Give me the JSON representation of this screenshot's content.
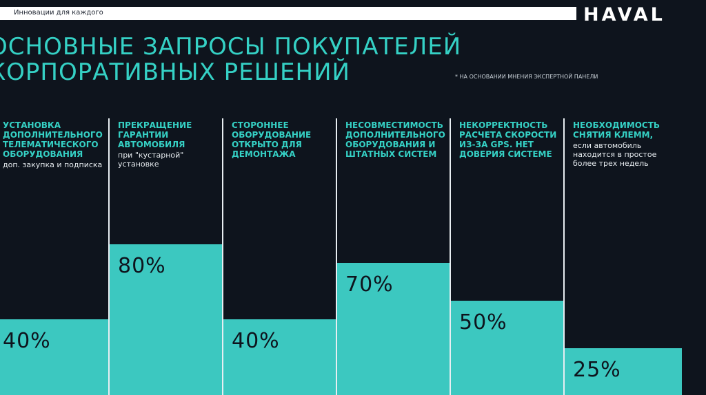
{
  "header": {
    "tagline": "Инновации для каждого",
    "brand": "HAVAL"
  },
  "title_line1": "основные запросы покупателей",
  "title_line2": "корпоративных решений",
  "footnote": "* НА ОСНОВАНИИ МНЕНИЯ ЭКСПЕРТНОЙ ПАНЕЛИ",
  "chart_data": {
    "type": "bar",
    "categories": [
      "установка дополнительного телематического оборудования",
      "прекращение гарантии автомобиля",
      "стороннее оборудование открыто для демонтажа",
      "несовместимость дополнительного оборудования и штатных систем",
      "некорректность расчета скорости из-за GPS. Нет доверия системе",
      "необходимость снятия клемм,"
    ],
    "notes": [
      "доп. закупка и подписка",
      "при \"кустарной\" установке",
      "",
      "",
      "",
      "если автомобиль находится в простое более трех недель"
    ],
    "values": [
      40,
      80,
      40,
      70,
      50,
      25
    ],
    "value_labels": [
      "40%",
      "80%",
      "40%",
      "70%",
      "50%",
      "25%"
    ],
    "ylim": [
      0,
      100
    ],
    "bar_color": "#3cc8c0",
    "accent_color": "#35d1c5",
    "background_color": "#0e141d"
  }
}
